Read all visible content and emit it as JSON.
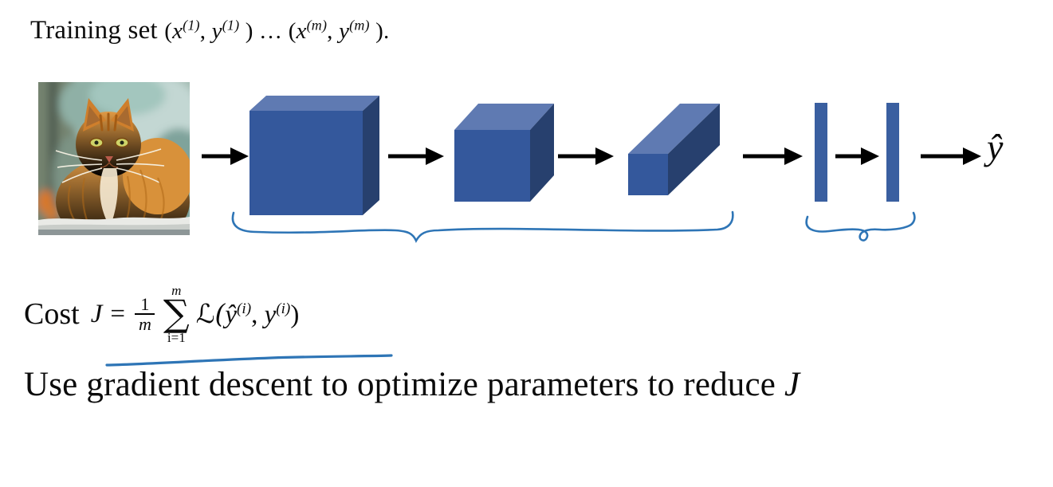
{
  "title": {
    "segments": [
      {
        "t": "Training set "
      },
      {
        "t": "(",
        "math": true
      },
      {
        "t": "x",
        "italic": true
      },
      {
        "t": "(1)",
        "sup": true,
        "italic": true
      },
      {
        "t": ", ",
        "math": true
      },
      {
        "t": "y",
        "italic": true
      },
      {
        "t": "(1)",
        "sup": true,
        "italic": true
      },
      {
        "t": " ) … (",
        "math": true
      },
      {
        "t": "x",
        "italic": true
      },
      {
        "t": "(m)",
        "sup": true,
        "italic": true
      },
      {
        "t": ", ",
        "math": true
      },
      {
        "t": "y",
        "italic": true
      },
      {
        "t": "(m)",
        "sup": true,
        "italic": true
      },
      {
        "t": " ).",
        "math": true
      }
    ]
  },
  "diagram": {
    "output_label": "ŷ",
    "colors": {
      "cube_front": "#34589C",
      "cube_top": "#5F7AB2",
      "cube_side": "#27406E",
      "cube_edge": "#2A4377",
      "fc_bar": "#3A5FA0",
      "arrow": "#000000",
      "annotation": "#2E75B6"
    }
  },
  "cost": {
    "label": "Cost",
    "var": "J",
    "equals": "=",
    "frac_num": "1",
    "frac_den": "m",
    "sum_top": "m",
    "sum_symbol": "∑",
    "sum_bottom": "i=1",
    "loss_open": "ℒ(",
    "yhat": "ŷ",
    "sup1": "(i)",
    "comma": ", ",
    "y": "y",
    "sup2": "(i)",
    "close": ")"
  },
  "bottom": {
    "segments": [
      {
        "t": "Use gradient descent to optimize parameters to reduce "
      },
      {
        "t": "J",
        "italic": true
      }
    ]
  }
}
